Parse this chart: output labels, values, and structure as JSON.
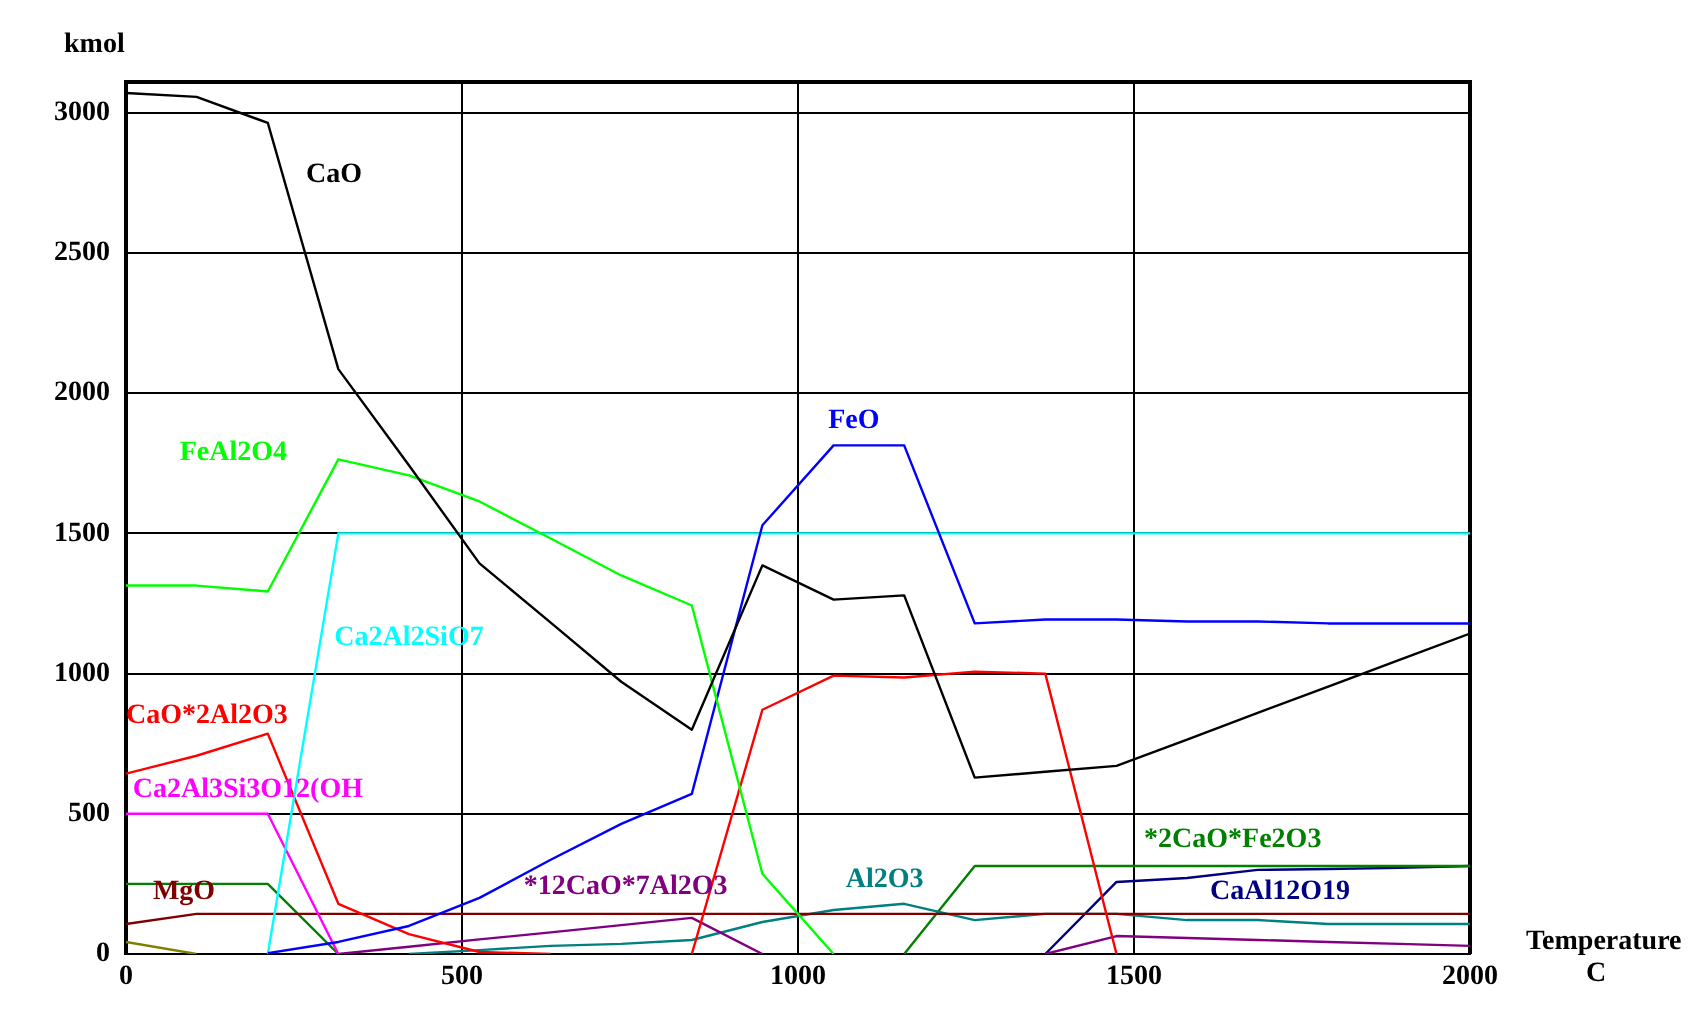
{
  "chart_data": {
    "type": "line",
    "ylabel": "kmol",
    "xlabel": "Temperature\nC",
    "x": [
      0,
      105,
      211,
      316,
      421,
      526,
      632,
      737,
      842,
      947,
      1053,
      1158,
      1263,
      1368,
      1474,
      1579,
      1684,
      1789,
      1895,
      2000
    ],
    "xlim": [
      0,
      2000
    ],
    "xticks": [
      0,
      500,
      1000,
      1500,
      2000
    ],
    "ylim": [
      0,
      3110
    ],
    "yticks": [
      0,
      500,
      1000,
      1500,
      2000,
      2500,
      3000
    ],
    "grid": true,
    "legend": false,
    "marker": "none",
    "line_style": "solid",
    "series": [
      {
        "name": "CaO",
        "color": "#000000",
        "values": [
          3071,
          3057,
          2964,
          2086,
          1743,
          1393,
          1182,
          971,
          800,
          1386,
          1264,
          1279,
          629,
          650,
          671,
          765,
          860,
          954,
          1049,
          1143
        ]
      },
      {
        "name": "FeAl2O4",
        "color": "#00ff00",
        "values": [
          1314,
          1314,
          1293,
          1764,
          1707,
          1614,
          1482,
          1350,
          1243,
          286,
          0,
          null,
          null,
          null,
          null,
          null,
          null,
          null,
          null,
          null
        ]
      },
      {
        "name": "FeO",
        "color": "#0000ff",
        "values": [
          null,
          null,
          3,
          43,
          100,
          200,
          336,
          464,
          571,
          1529,
          1814,
          1814,
          1179,
          1193,
          1193,
          1186,
          1186,
          1179,
          1179,
          1179
        ]
      },
      {
        "name": "Ca2Al2SiO7",
        "color": "#00ffff",
        "values": [
          null,
          null,
          0,
          1500,
          1500,
          1500,
          1500,
          1500,
          1500,
          1500,
          1500,
          1500,
          1500,
          1500,
          1500,
          1500,
          1500,
          1500,
          1500,
          1500
        ]
      },
      {
        "name": "CaO*2Al2O3",
        "color": "#ff0000",
        "values": [
          643,
          707,
          786,
          179,
          71,
          7,
          0,
          null,
          0,
          871,
          993,
          986,
          1007,
          1000,
          0,
          null,
          null,
          null,
          null,
          null
        ]
      },
      {
        "name": "Ca2Al3Si3O12(OH",
        "color": "#ff00ff",
        "values": [
          500,
          500,
          500,
          0,
          null,
          null,
          null,
          null,
          null,
          null,
          null,
          null,
          null,
          null,
          null,
          null,
          null,
          null,
          null,
          null
        ]
      },
      {
        "name": "MgO",
        "color": "#800000",
        "values": [
          107,
          143,
          143,
          143,
          143,
          143,
          143,
          143,
          143,
          143,
          143,
          143,
          143,
          143,
          143,
          143,
          143,
          143,
          143,
          143
        ]
      },
      {
        "color": "#808000",
        "values": [
          43,
          0,
          null,
          null,
          null,
          null,
          null,
          null,
          null,
          null,
          null,
          null,
          null,
          null,
          null,
          null,
          null,
          null,
          null,
          null
        ]
      },
      {
        "name": "*12CaO*7Al2O3",
        "color": "#800080",
        "values": [
          null,
          null,
          null,
          0,
          26,
          52,
          77,
          103,
          129,
          0,
          null,
          null,
          null,
          0,
          64,
          57,
          50,
          43,
          36,
          29
        ]
      },
      {
        "name": "Al2O3",
        "color": "#008080",
        "values": [
          null,
          null,
          null,
          null,
          0,
          14,
          29,
          36,
          50,
          114,
          157,
          179,
          121,
          143,
          143,
          121,
          121,
          107,
          107,
          107
        ]
      },
      {
        "name": "*2CaO*Fe2O3",
        "color": "#008000",
        "values": [
          250,
          250,
          250,
          0,
          null,
          null,
          null,
          null,
          null,
          null,
          null,
          0,
          314,
          314,
          314,
          314,
          314,
          314,
          314,
          314
        ]
      },
      {
        "name": "CaAl12O19",
        "color": "#000080",
        "values": [
          null,
          null,
          null,
          null,
          null,
          null,
          null,
          null,
          null,
          null,
          null,
          null,
          null,
          0,
          257,
          271,
          300,
          303,
          307,
          314
        ]
      }
    ]
  }
}
